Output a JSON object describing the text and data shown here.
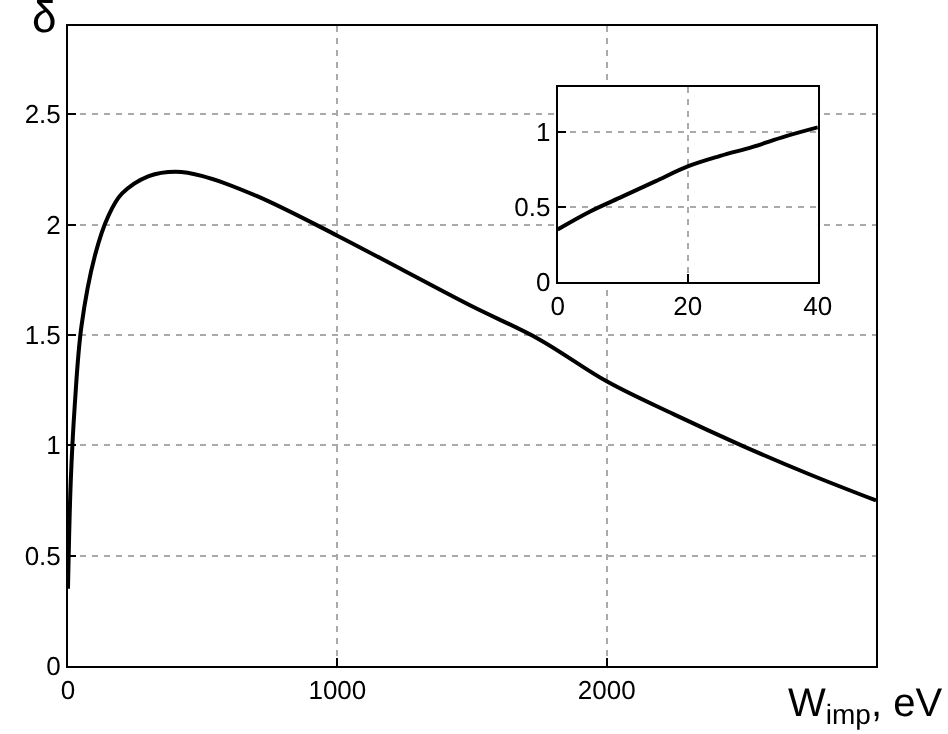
{
  "chart_data": [
    {
      "type": "line",
      "xlabel": "W$_{imp}$, eV",
      "ylabel": "δ",
      "x": [
        0,
        10,
        25,
        50,
        100,
        150,
        200,
        300,
        400,
        500,
        700,
        1000,
        1250,
        1500,
        1750,
        2000,
        2250,
        2500,
        2750,
        3000
      ],
      "series": [
        {
          "color": "#000000",
          "values": [
            0.35,
            0.83,
            1.18,
            1.54,
            1.86,
            2.04,
            2.14,
            2.22,
            2.24,
            2.22,
            2.13,
            1.95,
            1.79,
            1.63,
            1.48,
            1.29,
            1.14,
            1.0,
            0.87,
            0.75
          ]
        }
      ],
      "xlim": [
        0,
        3000
      ],
      "ylim": [
        0,
        2.9
      ],
      "xticks": [
        0,
        1000,
        2000
      ],
      "yticks": [
        0,
        0.5,
        1,
        1.5,
        2,
        2.5
      ],
      "grid": true,
      "line_style": "solid",
      "marker": "none"
    },
    {
      "type": "line",
      "x": [
        0,
        5,
        10,
        15,
        20,
        25,
        30,
        35,
        40
      ],
      "series": [
        {
          "color": "#000000",
          "values": [
            0.35,
            0.47,
            0.57,
            0.67,
            0.77,
            0.84,
            0.9,
            0.97,
            1.03
          ]
        }
      ],
      "xlim": [
        0,
        40
      ],
      "ylim": [
        0,
        1.3
      ],
      "xticks": [
        0,
        20,
        40
      ],
      "yticks": [
        0,
        0.5,
        1
      ],
      "grid": true,
      "line_style": "solid",
      "marker": "none"
    }
  ]
}
